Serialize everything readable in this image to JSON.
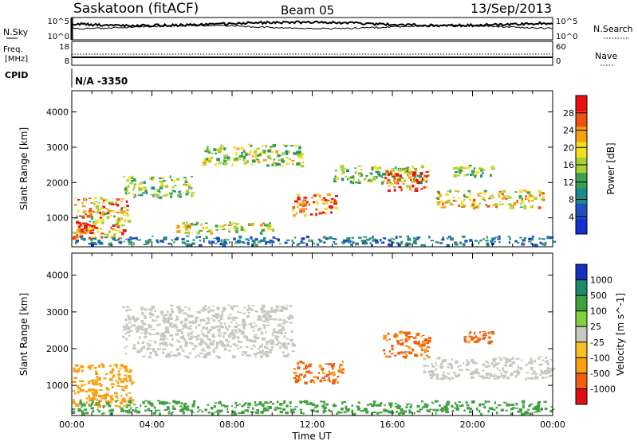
{
  "header": {
    "title": "Saskatoon (fitACF)",
    "beam": "Beam 05",
    "date": "13/Sep/2013"
  },
  "strips": {
    "nsky_label": "N.Sky",
    "nsky_ticks": [
      "10^5",
      "10^0"
    ],
    "nsearch_label": "N.Search",
    "nsearch_ticks": [
      "10^5",
      "10^0"
    ],
    "freq_label_1": "Freq.",
    "freq_label_2": "[MHz]",
    "freq_ticks": [
      "18",
      "8"
    ],
    "nave_label": "Nave",
    "nave_ticks": [
      "60",
      "0"
    ],
    "cpid_label": "CPID",
    "cpid_value": "N/A -3350"
  },
  "chart_data": [
    {
      "type": "heatmap",
      "panel": "power",
      "xlabel": "",
      "ylabel": "Slant Range [km]",
      "yticks": [
        1000,
        2000,
        3000,
        4000
      ],
      "ylim": [
        180,
        4600
      ],
      "xlim": [
        0,
        24
      ],
      "colorbar": {
        "label": "Power [dB]",
        "ticks": [
          4,
          8,
          12,
          16,
          20,
          24,
          28
        ],
        "range": [
          0,
          32
        ],
        "colors": [
          "#1530d0",
          "#2050c0",
          "#1a8a8a",
          "#3aa050",
          "#a8d030",
          "#f0e020",
          "#f8a010",
          "#f05010",
          "#e81010"
        ]
      },
      "regions": [
        {
          "t0": 0.0,
          "t1": 2.8,
          "r0": 450,
          "r1": 1600,
          "level": 22
        },
        {
          "t0": 0.2,
          "t1": 1.2,
          "r0": 600,
          "r1": 900,
          "level": 28
        },
        {
          "t0": 2.5,
          "t1": 6.0,
          "r0": 1600,
          "r1": 2200,
          "level": 14
        },
        {
          "t0": 5.0,
          "t1": 10.0,
          "r0": 600,
          "r1": 900,
          "level": 18
        },
        {
          "t0": 6.5,
          "t1": 11.5,
          "r0": 2500,
          "r1": 3100,
          "level": 16
        },
        {
          "t0": 11.0,
          "t1": 13.2,
          "r0": 1100,
          "r1": 1700,
          "level": 28
        },
        {
          "t0": 13.0,
          "t1": 17.5,
          "r0": 2000,
          "r1": 2500,
          "level": 14
        },
        {
          "t0": 15.5,
          "t1": 17.8,
          "r0": 1800,
          "r1": 2400,
          "level": 26
        },
        {
          "t0": 18.0,
          "t1": 23.5,
          "r0": 1300,
          "r1": 1800,
          "level": 20
        },
        {
          "t0": 19.0,
          "t1": 21.0,
          "r0": 2200,
          "r1": 2500,
          "level": 14
        },
        {
          "t0": 0.0,
          "t1": 24.0,
          "r0": 250,
          "r1": 500,
          "level": 8
        }
      ]
    },
    {
      "type": "heatmap",
      "panel": "velocity",
      "xlabel": "Time UT",
      "ylabel": "Slant Range [km]",
      "xticks": [
        "00:00",
        "04:00",
        "08:00",
        "12:00",
        "16:00",
        "20:00",
        "00:00"
      ],
      "yticks": [
        1000,
        2000,
        3000,
        4000
      ],
      "ylim": [
        180,
        4600
      ],
      "xlim": [
        0,
        24
      ],
      "colorbar": {
        "label": "Velocity [m s^-1]",
        "ticks": [
          1000,
          500,
          100,
          25,
          -25,
          -100,
          -500,
          -1000
        ],
        "colors": [
          "#1530c0",
          "#1a8a6a",
          "#40a040",
          "#80d040",
          "#c8c8c0",
          "#f8c020",
          "#f8a010",
          "#f06010",
          "#e01010"
        ]
      },
      "regions": [
        {
          "t0": 0.0,
          "t1": 3.0,
          "r0": 450,
          "r1": 1600,
          "level": -150
        },
        {
          "t0": 2.5,
          "t1": 11.0,
          "r0": 1800,
          "r1": 3200,
          "level": 0
        },
        {
          "t0": 11.0,
          "t1": 13.5,
          "r0": 1100,
          "r1": 1700,
          "level": -300
        },
        {
          "t0": 15.5,
          "t1": 17.8,
          "r0": 1800,
          "r1": 2500,
          "level": -300
        },
        {
          "t0": 17.5,
          "t1": 24.0,
          "r0": 1200,
          "r1": 1800,
          "level": 0
        },
        {
          "t0": 19.5,
          "t1": 21.0,
          "r0": 2200,
          "r1": 2500,
          "level": -300
        },
        {
          "t0": 0.0,
          "t1": 24.0,
          "r0": 250,
          "r1": 600,
          "level": 50
        }
      ]
    }
  ]
}
